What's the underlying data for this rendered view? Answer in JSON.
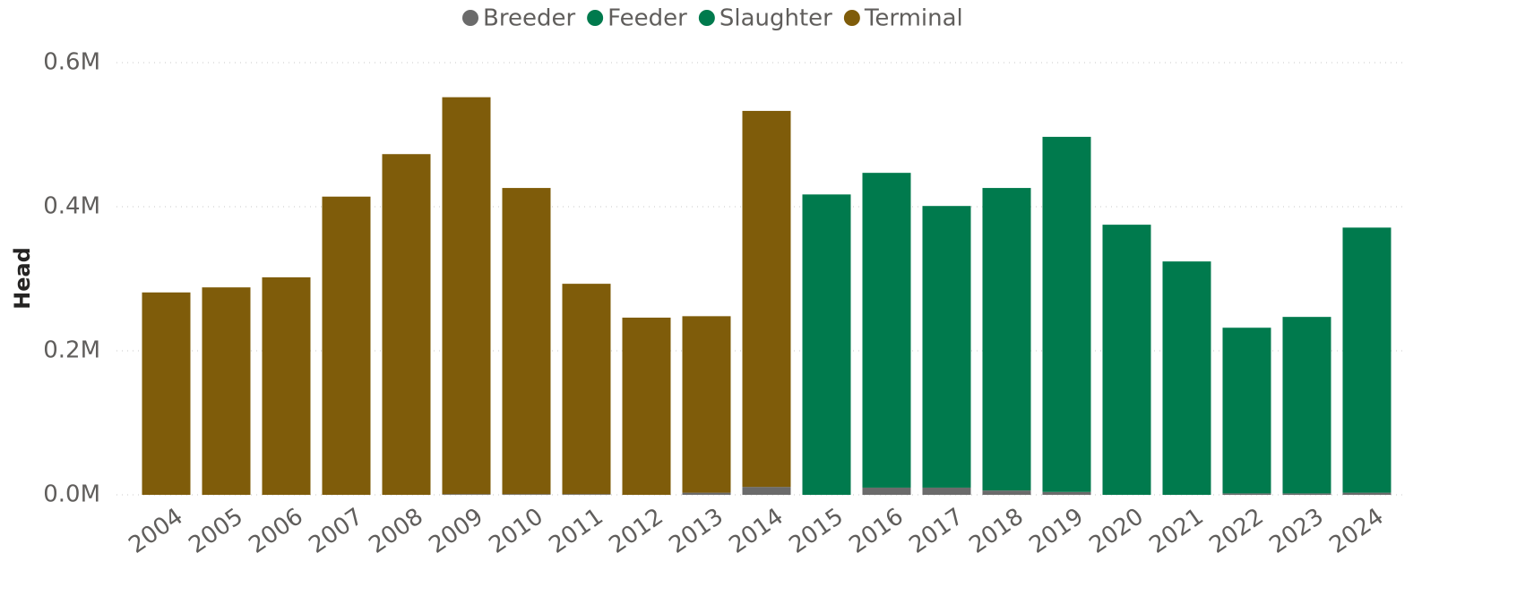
{
  "chart_data": {
    "type": "bar",
    "stacked": true,
    "y_label": "Head",
    "categories": [
      "2004",
      "2005",
      "2006",
      "2007",
      "2008",
      "2009",
      "2010",
      "2011",
      "2012",
      "2013",
      "2014",
      "2015",
      "2016",
      "2017",
      "2018",
      "2019",
      "2020",
      "2021",
      "2022",
      "2023",
      "2024"
    ],
    "series": [
      {
        "name": "Breeder",
        "color": "#6b6b6b",
        "values": [
          0,
          0,
          0,
          0,
          0,
          1000,
          1000,
          1000,
          0,
          3000,
          11000,
          0,
          10000,
          10000,
          6000,
          4000,
          0,
          0,
          2000,
          2000,
          3000
        ]
      },
      {
        "name": "Feeder",
        "color": "#007a4d",
        "values": [
          0,
          0,
          0,
          0,
          0,
          0,
          0,
          0,
          0,
          0,
          0,
          0,
          0,
          0,
          0,
          0,
          0,
          0,
          0,
          0,
          0
        ]
      },
      {
        "name": "Slaughter",
        "color": "#007a4d",
        "values": [
          0,
          0,
          0,
          0,
          0,
          0,
          0,
          0,
          0,
          0,
          0,
          417000,
          437000,
          391000,
          420000,
          493000,
          375000,
          324000,
          230000,
          245000,
          368000
        ]
      },
      {
        "name": "Terminal",
        "color": "#7f5c0a",
        "values": [
          281000,
          288000,
          302000,
          414000,
          473000,
          551000,
          425000,
          292000,
          246000,
          245000,
          522000,
          0,
          0,
          0,
          0,
          0,
          0,
          0,
          0,
          0,
          0
        ]
      }
    ],
    "ylim": [
      0,
      600000
    ],
    "yticks": [
      {
        "value": 0,
        "label": "0.0M"
      },
      {
        "value": 200000,
        "label": "0.2M"
      },
      {
        "value": 400000,
        "label": "0.4M"
      },
      {
        "value": 600000,
        "label": "0.6M"
      }
    ],
    "grid": true,
    "legend": "top"
  }
}
